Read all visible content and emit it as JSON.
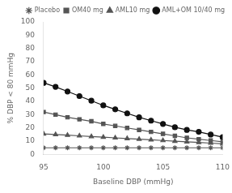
{
  "chart_data": {
    "type": "line",
    "x": [
      95,
      96,
      97,
      98,
      99,
      100,
      101,
      102,
      103,
      104,
      105,
      106,
      107,
      108,
      109,
      110
    ],
    "series": [
      {
        "name": "Placebo",
        "color": "#555555",
        "marker": "star",
        "values": [
          5.0,
          5.0,
          5.0,
          5.0,
          5.0,
          5.0,
          5.0,
          5.0,
          5.0,
          5.0,
          5.0,
          5.0,
          5.0,
          5.0,
          5.0,
          5.0
        ]
      },
      {
        "name": "OM40 mg",
        "color": "#555555",
        "marker": "square",
        "values": [
          32.0,
          30.0,
          28.0,
          26.5,
          25.0,
          23.0,
          21.5,
          20.0,
          18.5,
          17.0,
          15.5,
          14.0,
          12.5,
          11.5,
          10.5,
          9.5
        ]
      },
      {
        "name": "AML10 mg",
        "color": "#555555",
        "marker": "triangle",
        "values": [
          15.5,
          15.0,
          14.5,
          14.0,
          13.5,
          13.0,
          12.5,
          12.0,
          11.5,
          11.0,
          10.5,
          10.0,
          9.5,
          9.0,
          8.5,
          8.0
        ]
      },
      {
        "name": "AML+OM 10/40 mg",
        "color": "#111111",
        "marker": "circle",
        "values": [
          54.0,
          51.0,
          47.5,
          44.0,
          40.5,
          37.0,
          34.0,
          31.0,
          28.0,
          25.5,
          23.0,
          20.5,
          18.5,
          17.0,
          15.0,
          13.0
        ]
      }
    ],
    "xlabel": "Baseline DBP (mmHg)",
    "ylabel": "% DBP < 80 mmHg",
    "xlim": [
      95,
      110
    ],
    "ylim": [
      0,
      100
    ],
    "xticks": [
      95,
      100,
      105,
      110
    ],
    "yticks": [
      0,
      10,
      20,
      30,
      40,
      50,
      60,
      70,
      80,
      90,
      100
    ],
    "grid": false,
    "legend": "upper right"
  }
}
